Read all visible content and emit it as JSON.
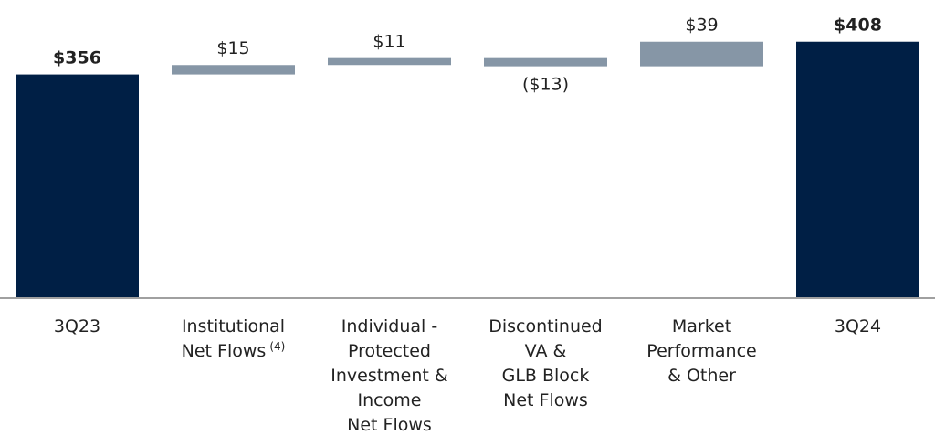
{
  "chart_data": {
    "type": "waterfall",
    "categories": [
      [
        {
          "text": "3Q23"
        }
      ],
      [
        {
          "text": "Institutional"
        },
        {
          "text": "Net Flows",
          "sup": "(4)"
        }
      ],
      [
        {
          "text": "Individual -"
        },
        {
          "text": "Protected"
        },
        {
          "text": "Investment &"
        },
        {
          "text": "Income"
        },
        {
          "text": "Net Flows"
        }
      ],
      [
        {
          "text": "Discontinued"
        },
        {
          "text": "VA &"
        },
        {
          "text": "GLB Block"
        },
        {
          "text": "Net Flows"
        }
      ],
      [
        {
          "text": "Market"
        },
        {
          "text": "Performance"
        },
        {
          "text": "& Other"
        }
      ],
      [
        {
          "text": "3Q24"
        }
      ]
    ],
    "values": [
      356,
      15,
      11,
      -13,
      39,
      408
    ],
    "value_labels": [
      "$356",
      "$15",
      "$11",
      "($13)",
      "$39",
      "$408"
    ],
    "measure": [
      "absolute",
      "relative",
      "relative",
      "relative",
      "relative",
      "total"
    ],
    "colors": [
      "#001f45",
      "#8696a6",
      "#8696a6",
      "#8696a6",
      "#8696a6",
      "#001f45"
    ],
    "ylim": [
      0,
      470
    ]
  }
}
